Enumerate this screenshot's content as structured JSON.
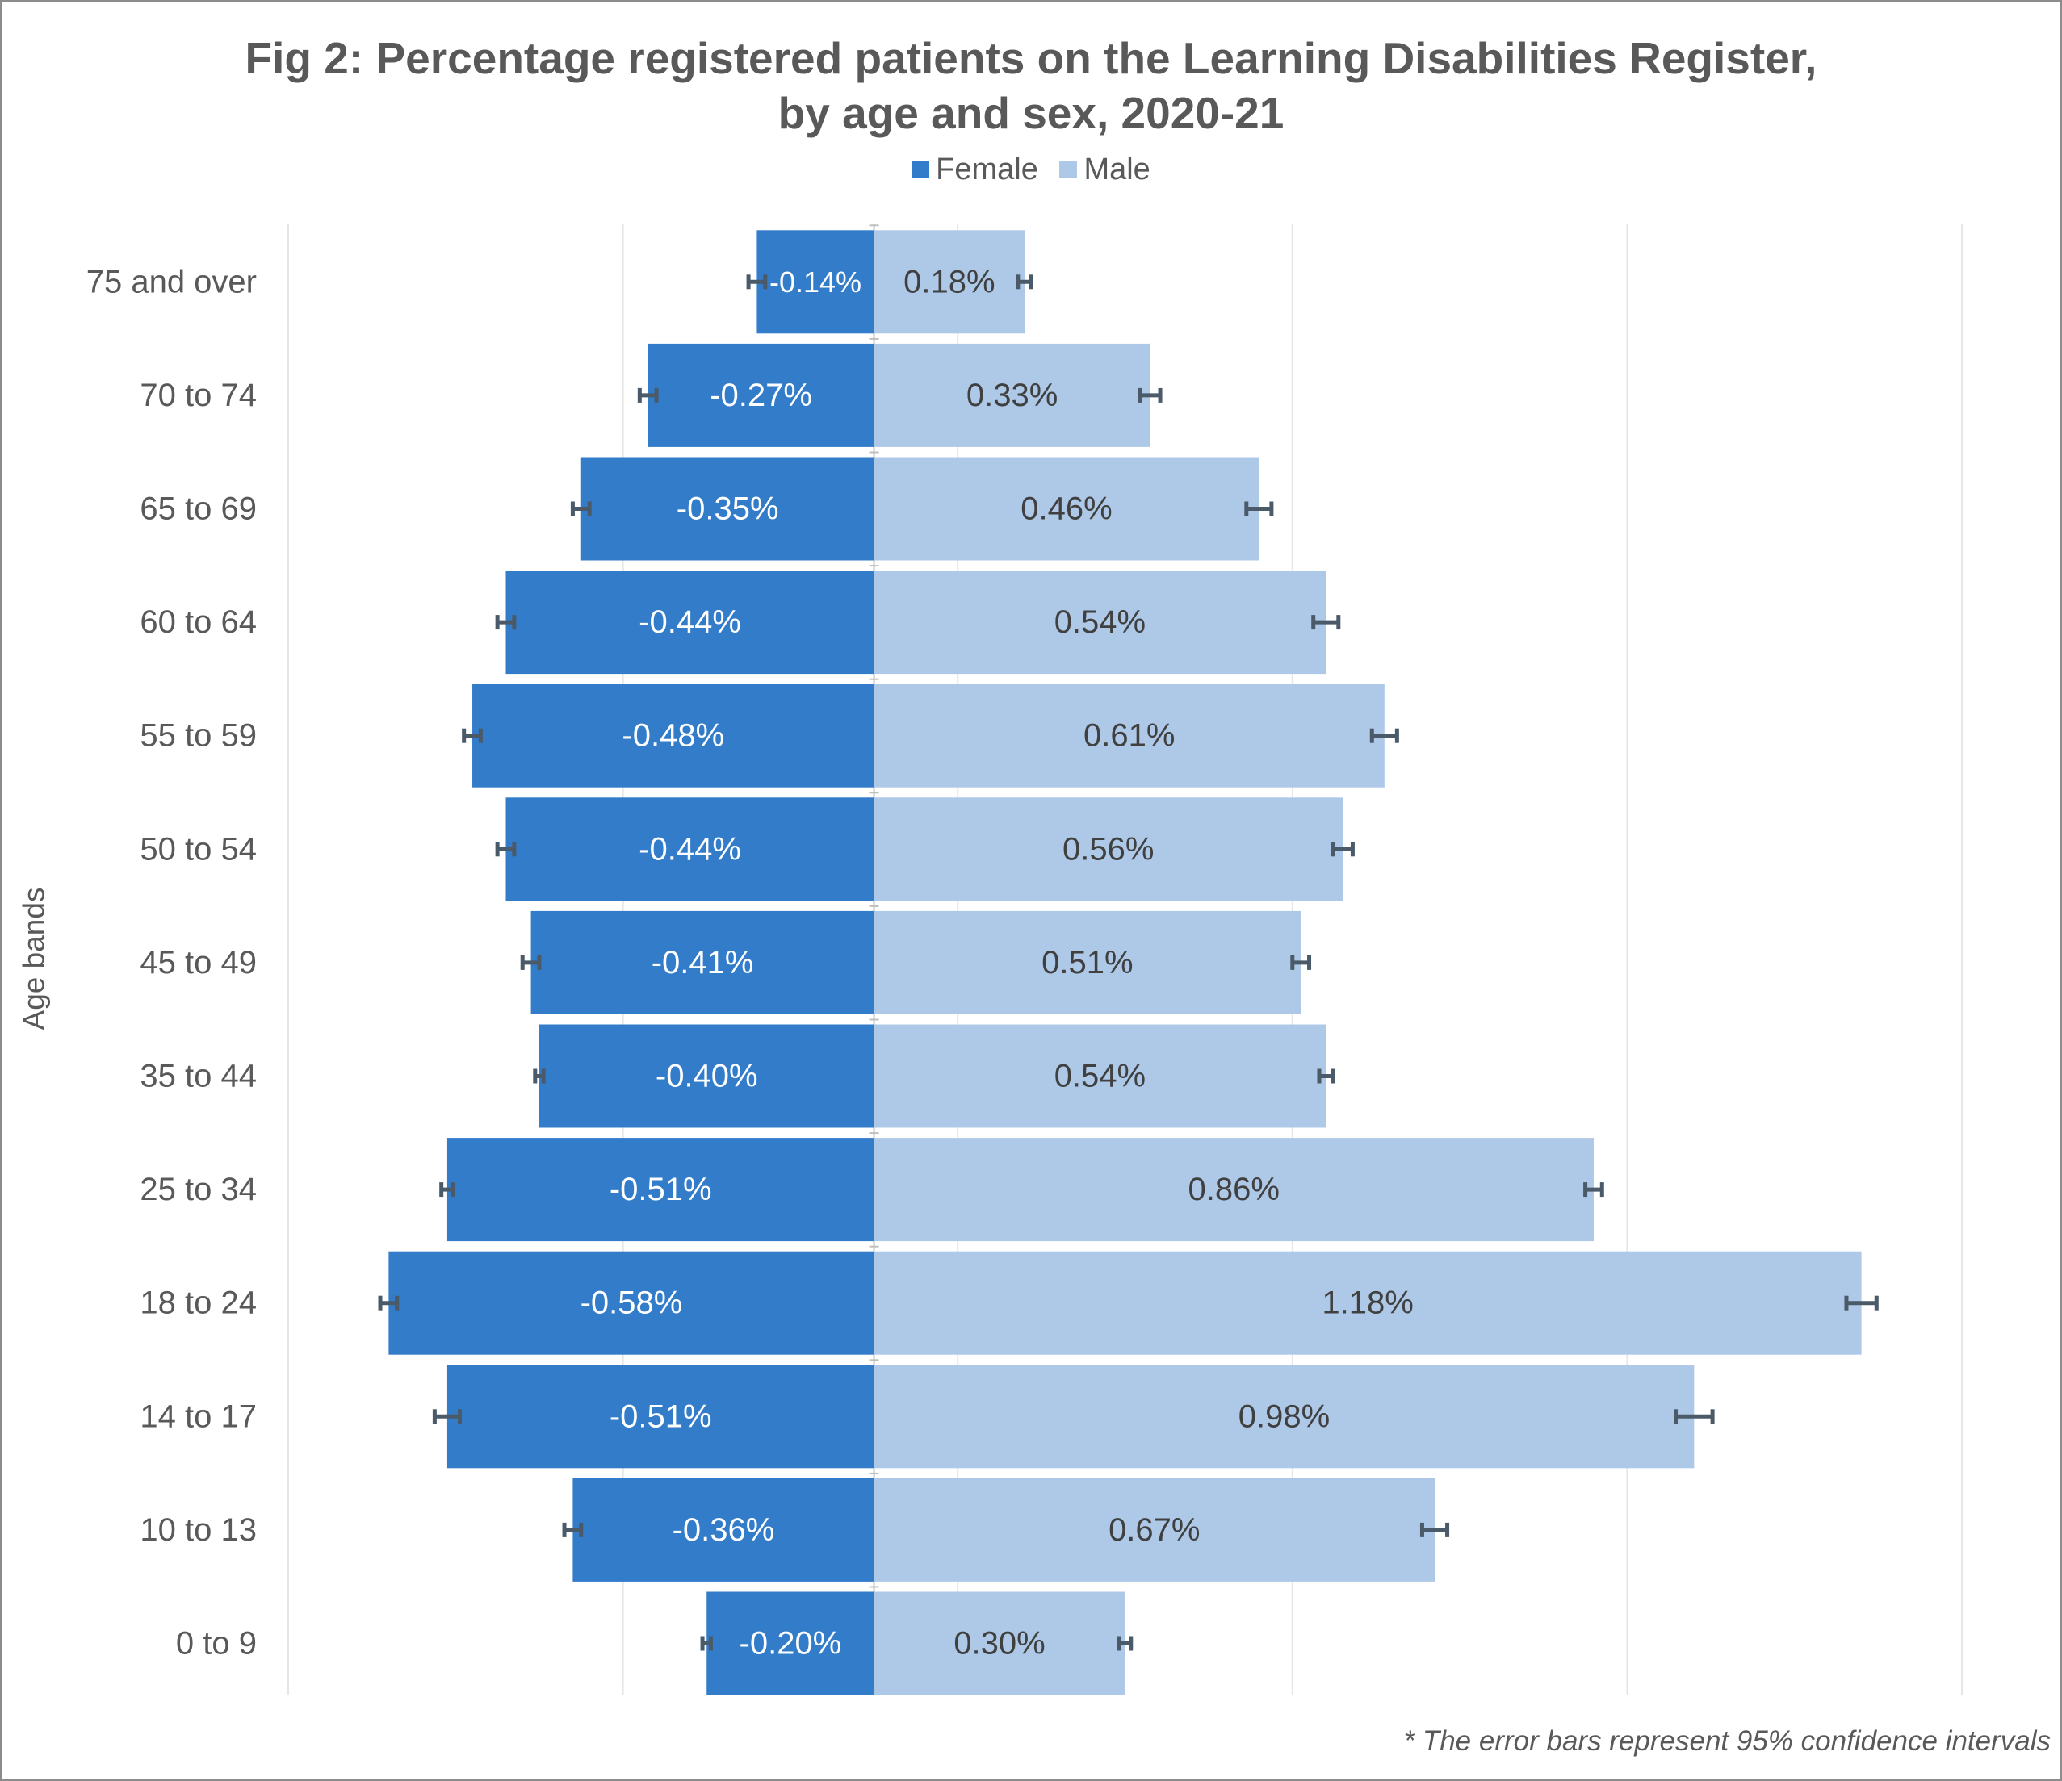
{
  "chart_data": {
    "type": "bar",
    "orientation": "horizontal",
    "title": [
      "Fig 2: Percentage registered patients on the Learning Disabilities Register,",
      "by age and sex, 2020-21"
    ],
    "ylabel": "Age bands",
    "xlabel": "",
    "xlim": [
      -0.7,
      1.3
    ],
    "grid": true,
    "legend_placement": "top-center",
    "categories": [
      "75 and over",
      "70 to 74",
      "65 to 69",
      "60 to 64",
      "55 to 59",
      "50 to 54",
      "45 to 49",
      "35 to 44",
      "25 to 34",
      "18 to 24",
      "14 to 17",
      "10 to 13",
      "0 to 9"
    ],
    "series": [
      {
        "name": "Female",
        "color": "#337cc9",
        "label_color": "#ffffff",
        "values": [
          -0.14,
          -0.27,
          -0.35,
          -0.44,
          -0.48,
          -0.44,
          -0.41,
          -0.4,
          -0.51,
          -0.58,
          -0.51,
          -0.36,
          -0.2
        ],
        "labels": [
          "-0.14%",
          "-0.27%",
          "-0.35%",
          "-0.44%",
          "-0.48%",
          "-0.44%",
          "-0.41%",
          "-0.40%",
          "-0.51%",
          "-0.58%",
          "-0.51%",
          "-0.36%",
          "-0.20%"
        ],
        "error": [
          0.01,
          0.01,
          0.01,
          0.01,
          0.01,
          0.01,
          0.01,
          0.005,
          0.007,
          0.01,
          0.015,
          0.01,
          0.005
        ]
      },
      {
        "name": "Male",
        "color": "#aec9e7",
        "label_color": "#404040",
        "values": [
          0.18,
          0.33,
          0.46,
          0.54,
          0.61,
          0.56,
          0.51,
          0.54,
          0.86,
          1.18,
          0.98,
          0.67,
          0.3
        ],
        "labels": [
          "0.18%",
          "0.33%",
          "0.46%",
          "0.54%",
          "0.61%",
          "0.56%",
          "0.51%",
          "0.54%",
          "0.86%",
          "1.18%",
          "0.98%",
          "0.67%",
          "0.30%"
        ],
        "error": [
          0.008,
          0.012,
          0.015,
          0.015,
          0.015,
          0.012,
          0.01,
          0.008,
          0.01,
          0.018,
          0.022,
          0.015,
          0.007
        ]
      }
    ],
    "colors": {
      "gridline": "#e6e6e6",
      "axis": "#bfbfbf",
      "text": "#595959",
      "error_bar": "#4a5a68"
    }
  },
  "footnote": "* The error bars represent 95% confidence intervals"
}
